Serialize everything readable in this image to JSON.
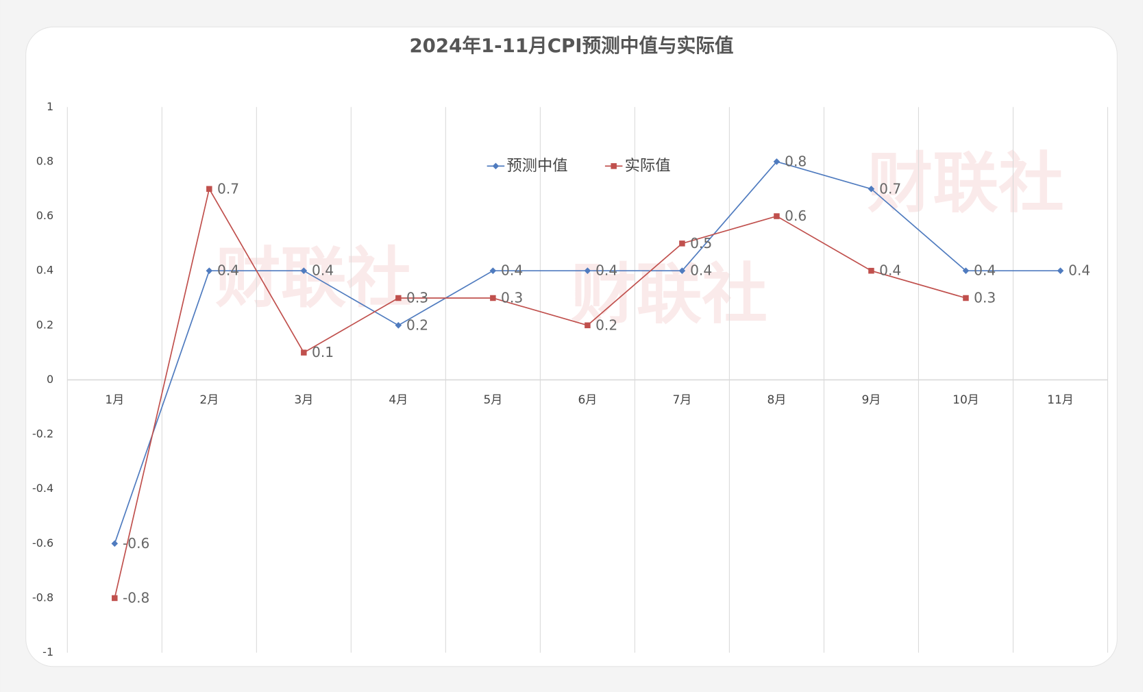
{
  "chart_data": {
    "type": "line",
    "title": "2024年1-11月CPI预测中值与实际值",
    "watermark": "财联社",
    "categories": [
      "1月",
      "2月",
      "3月",
      "4月",
      "5月",
      "6月",
      "7月",
      "8月",
      "9月",
      "10月",
      "11月"
    ],
    "series": [
      {
        "name": "预测中值",
        "color": "#4f7bbf",
        "marker": "diamond",
        "values": [
          -0.6,
          0.4,
          0.4,
          0.2,
          0.4,
          0.4,
          0.4,
          0.8,
          0.7,
          0.4,
          0.4
        ]
      },
      {
        "name": "实际值",
        "color": "#c0504d",
        "marker": "square",
        "values": [
          -0.8,
          0.7,
          0.1,
          0.3,
          0.3,
          0.2,
          0.5,
          0.6,
          0.4,
          0.3,
          null
        ]
      }
    ],
    "ylim": [
      -1,
      1
    ],
    "yticks": [
      -1,
      -0.8,
      -0.6,
      -0.4,
      -0.2,
      0,
      0.2,
      0.4,
      0.6,
      0.8,
      1
    ],
    "grid": "x",
    "data_labels": true
  }
}
